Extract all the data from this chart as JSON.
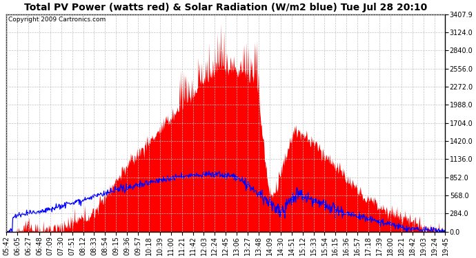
{
  "title": "Total PV Power (watts red) & Solar Radiation (W/m2 blue) Tue Jul 28 20:10",
  "copyright": "Copyright 2009 Cartronics.com",
  "background_color": "#ffffff",
  "plot_bg_color": "#ffffff",
  "grid_color": "#c0c0c0",
  "yticks": [
    0.0,
    284.0,
    568.0,
    852.0,
    1136.0,
    1420.0,
    1704.0,
    1988.0,
    2272.0,
    2556.0,
    2840.0,
    3124.0,
    3407.9
  ],
  "ymax": 3407.9,
  "ymin": 0.0,
  "pv_color": "#ff0000",
  "solar_color": "#0000ff",
  "title_fontsize": 10,
  "copyright_fontsize": 6.5,
  "tick_fontsize": 7,
  "x_tick_labels": [
    "05:42",
    "06:05",
    "06:27",
    "06:48",
    "07:09",
    "07:30",
    "07:51",
    "08:12",
    "08:33",
    "08:54",
    "09:15",
    "09:36",
    "09:57",
    "10:18",
    "10:39",
    "11:00",
    "11:21",
    "11:42",
    "12:03",
    "12:24",
    "12:45",
    "13:06",
    "13:27",
    "13:48",
    "14:09",
    "14:30",
    "14:51",
    "15:12",
    "15:33",
    "15:54",
    "16:15",
    "16:36",
    "16:57",
    "17:18",
    "17:39",
    "18:00",
    "18:21",
    "18:42",
    "19:03",
    "19:24",
    "19:45"
  ]
}
